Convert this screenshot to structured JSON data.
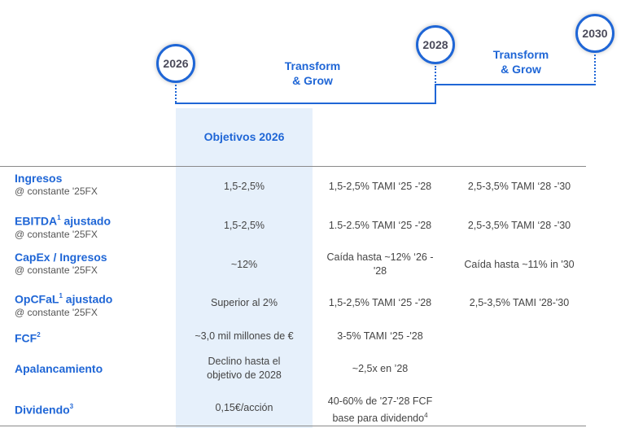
{
  "timeline": {
    "years": [
      "2026",
      "2028",
      "2030"
    ],
    "phases": [
      {
        "line1": "Transform",
        "line2": "& Grow"
      },
      {
        "line1": "Transform",
        "line2": "& Grow"
      }
    ]
  },
  "table": {
    "column_header": "Objetivos 2026",
    "rows": [
      {
        "title": "Ingresos",
        "sup": "",
        "subtitle": "@ constante '25FX",
        "obj2026": "1,5-2,5%",
        "to2028": "1,5-2,5% TAMI ‘25 -'28",
        "to2030": "2,5-3,5% TAMI ‘28 -'30"
      },
      {
        "title": "EBITDA",
        "sup": "1",
        "title_suffix": " ajustado",
        "subtitle": "@ constante '25FX",
        "obj2026": "1,5-2,5%",
        "to2028": "1.5-2.5% TAMI ‘25 -'28",
        "to2030": "2,5-3,5% TAMI ‘28 -'30"
      },
      {
        "title": "CapEx / Ingresos",
        "sup": "",
        "subtitle": "@ constante '25FX",
        "obj2026": "~12%",
        "to2028": "Caída hasta ~12% ‘26 -",
        "to2028_line2": "'28",
        "to2030": "Caída hasta ~11% in '30"
      },
      {
        "title": "OpCFaL",
        "sup": "1",
        "title_suffix": " ajustado",
        "subtitle": "@ constante '25FX",
        "obj2026": "Superior al 2%",
        "to2028": "1,5-2,5% TAMI ‘25 -'28",
        "to2030": "2,5-3,5% TAMI '28-'30"
      },
      {
        "title": "FCF",
        "sup": "2",
        "subtitle": "",
        "obj2026": "~3,0 mil millones de €",
        "to2028": "3-5% TAMI ‘25 -'28",
        "to2030": ""
      },
      {
        "title": "Apalancamiento",
        "sup": "",
        "subtitle": "",
        "obj2026": "Declino hasta el",
        "obj2026_line2": "objetivo de 2028",
        "to2028": "~2,5x en ’28",
        "to2030": ""
      },
      {
        "title": "Dividendo",
        "sup": "3",
        "subtitle": "",
        "obj2026": "0,15€/acción",
        "to2028": "40-60% de '27-'28 FCF",
        "to2028_line2": "base para dividendo",
        "to2028_line2_sup": "4",
        "to2030": ""
      }
    ]
  },
  "colors": {
    "accent": "#1f66d6",
    "highlight": "#e6f0fb"
  }
}
